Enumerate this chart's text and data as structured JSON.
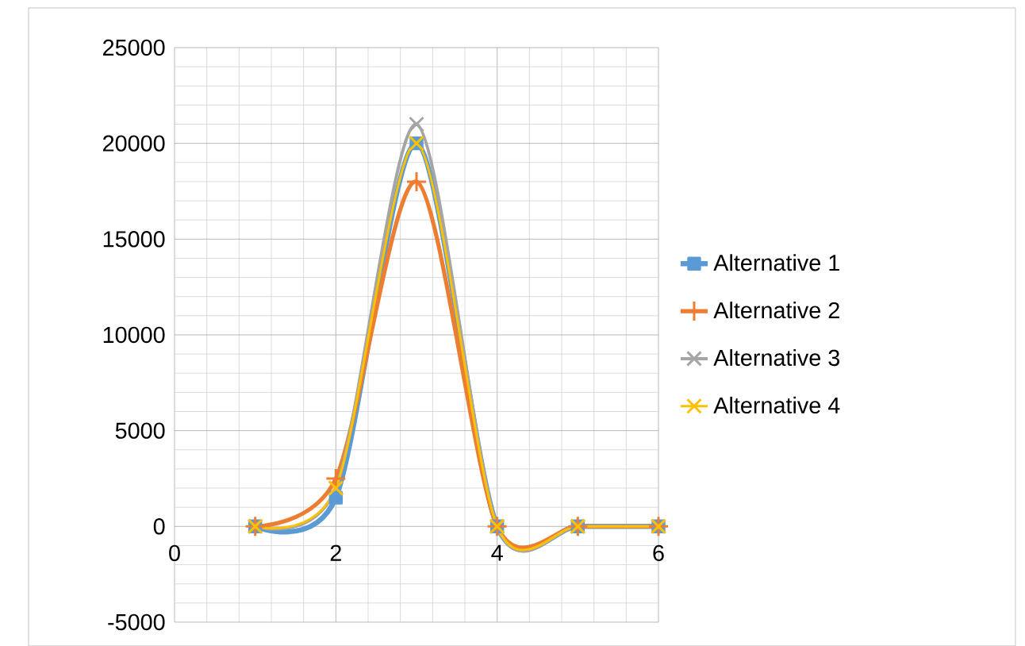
{
  "chart_data": {
    "type": "line",
    "x": [
      1,
      2,
      3,
      4,
      5,
      6
    ],
    "series": [
      {
        "name": "Alternative 1",
        "color": "#5b9bd5",
        "marker": "square",
        "values": [
          0,
          1500,
          20000,
          0,
          0,
          0
        ]
      },
      {
        "name": "Alternative 2",
        "color": "#ed7d31",
        "marker": "plus",
        "values": [
          0,
          2500,
          18000,
          0,
          0,
          0
        ]
      },
      {
        "name": "Alternative 3",
        "color": "#a5a5a5",
        "marker": "cross",
        "values": [
          0,
          2000,
          21000,
          0,
          0,
          0
        ]
      },
      {
        "name": "Alternative 4",
        "color": "#ffc000",
        "marker": "cross",
        "values": [
          0,
          2000,
          20000,
          0,
          0,
          0
        ]
      }
    ],
    "xlim": [
      0,
      6
    ],
    "xticks": [
      0,
      2,
      4,
      6
    ],
    "ylim": [
      -5000,
      25000
    ],
    "yticks": [
      -5000,
      0,
      5000,
      10000,
      15000,
      20000,
      25000
    ],
    "grid": true,
    "legend": "right"
  }
}
